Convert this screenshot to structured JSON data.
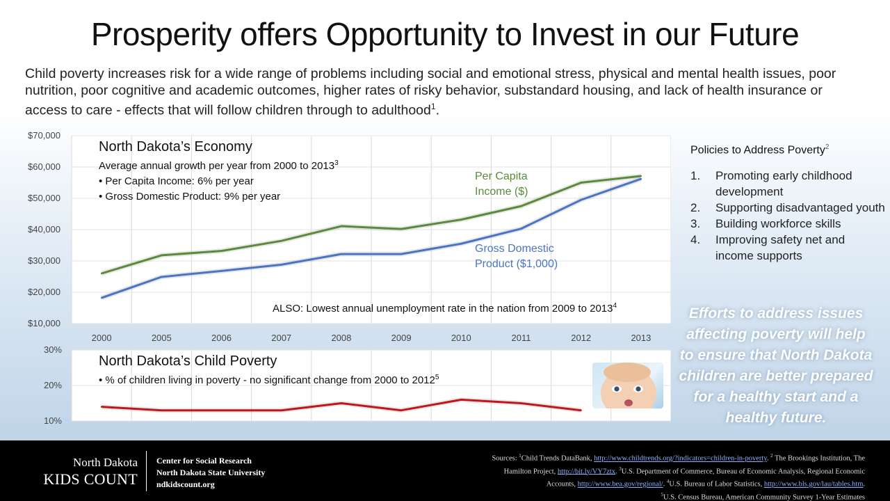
{
  "title": "Prosperity offers Opportunity to Invest in our Future",
  "intro": {
    "text": "Child poverty increases risk for a wide range of problems including social and emotional stress, physical and mental health issues, poor nutrition, poor cognitive and academic outcomes, higher rates of risky behavior, substandard housing, and lack of health insurance or access to care - effects that will follow children through to adulthood",
    "sup": "1",
    "end": "."
  },
  "economy": {
    "heading": "North Dakota’s Economy",
    "subheading": "Average annual growth per year from 2000 to 2013",
    "subheading_sup": "3",
    "bullet1": "• Per Capita Income: 6% per year",
    "bullet2": "• Gross Domestic Product: 9% per year",
    "also": "ALSO: Lowest annual unemployment rate in the nation from 2009 to 2013",
    "also_sup": "4",
    "label_income_1": "Per Capita",
    "label_income_2": "Income ($)",
    "label_gdp_1": "Gross Domestic",
    "label_gdp_2": "Product ($1,000)"
  },
  "poverty": {
    "heading": "North Dakota’s Child Poverty",
    "bullet": "• % of children living in poverty - no significant change from 2000 to 2012",
    "bullet_sup": "5"
  },
  "policies": {
    "heading": "Policies to Address Poverty",
    "heading_sup": "2",
    "items": [
      {
        "num": "1.",
        "text": "Promoting early childhood development"
      },
      {
        "num": "2.",
        "text": "Supporting disadvantaged youth"
      },
      {
        "num": "3.",
        "text": "Building workforce skills"
      },
      {
        "num": "4.",
        "text": "Improving safety net and income supports"
      }
    ]
  },
  "efforts": "Efforts to address issues affecting poverty will help to ensure that North Dakota children are better prepared for a healthy start and a healthy future.",
  "footer": {
    "nd_line1": "North Dakota",
    "nd_line2": "KIDS COUNT",
    "csr_line1": "Center for Social Research",
    "csr_line2": "North Dakota State University",
    "csr_line3": "ndkidscount.org",
    "src1_a": "Sources: ",
    "src1_sup": "1",
    "src1_b": "Child Trends DataBank, ",
    "src1_link": "http://www.childtrends.org/?indicators=children-in-poverty",
    "src1_c": ".  ",
    "src2_sup": "2",
    "src2_a": " The Brookings Institution, The",
    "src2_b": "Hamilton Project, ",
    "src2_link": "http://bit.ly/VY7ztx",
    "src2_c": ".  ",
    "src3_sup": "3",
    "src3_a": "U.S. Department of Commerce, Bureau of Economic Analysis, Regional Economic",
    "src3_b": "Accounts, ",
    "src3_link": "http://www.bea.gov/regional/",
    "src3_c": ".  ",
    "src4_sup": "4",
    "src4_a": "U.S. Bureau of Labor Statistics, ",
    "src4_link": "http://www.bls.gov/lau/tables.htm",
    "src4_c": ".",
    "src5_sup": "5",
    "src5_a": "U.S. Census Bureau, American Community Survey 1-Year Estimates"
  },
  "colors": {
    "income": "#5a8a3a",
    "gdp": "#4a74c4",
    "poverty": "#c0161c"
  },
  "chart_data": [
    {
      "type": "line",
      "x": [
        "2000",
        "2005",
        "2006",
        "2007",
        "2008",
        "2009",
        "2010",
        "2011",
        "2012",
        "2013"
      ],
      "ylim": [
        10000,
        70000
      ],
      "yticks": [
        "$10,000",
        "$20,000",
        "$30,000",
        "$40,000",
        "$50,000",
        "$60,000",
        "$70,000"
      ],
      "ytick_values": [
        10000,
        20000,
        30000,
        40000,
        50000,
        60000,
        70000
      ],
      "grid": true,
      "series": [
        {
          "name": "Per Capita Income ($)",
          "values": [
            26000,
            31800,
            33200,
            36400,
            41100,
            40200,
            43200,
            47500,
            55000,
            57100
          ]
        },
        {
          "name": "Gross Domestic Product ($1,000)",
          "values": [
            18200,
            24900,
            26800,
            28800,
            32200,
            32200,
            35500,
            40300,
            49500,
            56200
          ]
        }
      ]
    },
    {
      "type": "line",
      "x": [
        "2000",
        "2005",
        "2006",
        "2007",
        "2008",
        "2009",
        "2010",
        "2011",
        "2012"
      ],
      "ylim": [
        10,
        30
      ],
      "yticks": [
        "10%",
        "20%",
        "30%"
      ],
      "ytick_values": [
        10,
        20,
        30
      ],
      "grid": true,
      "series": [
        {
          "values": [
            14,
            13,
            13,
            13,
            15,
            13,
            16,
            15,
            13
          ]
        }
      ]
    }
  ]
}
